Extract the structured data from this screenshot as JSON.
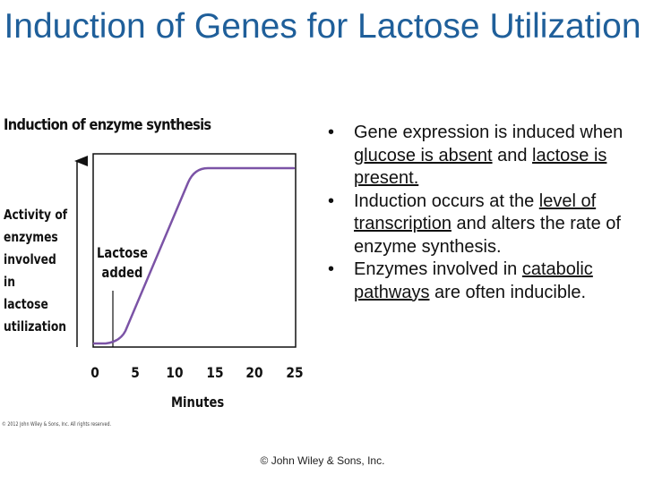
{
  "slide": {
    "title": "Induction of Genes for Lactose Utilization",
    "footer": "© John Wiley & Sons, Inc."
  },
  "figure": {
    "heading": "Induction of enzyme synthesis",
    "y_label": "Activity of\nenzymes\ninvolved in\nlactose\nutilization",
    "annotation": "Lactose\nadded",
    "x_label": "Minutes",
    "x_ticks": [
      "0",
      "5",
      "10",
      "15",
      "20",
      "25"
    ],
    "copyright": "© 2012 John Wiley & Sons, Inc. All rights reserved.",
    "curve_color": "#7b53a6"
  },
  "bullets": [
    {
      "parts": [
        {
          "text": "Gene expression is induced when "
        },
        {
          "text": "glucose is absent",
          "underline": true
        },
        {
          "text": " and "
        },
        {
          "text": "lactose is present.",
          "underline": true
        }
      ]
    },
    {
      "parts": [
        {
          "text": "Induction occurs at the "
        },
        {
          "text": "level of transcription",
          "underline": true
        },
        {
          "text": " and alters the rate of enzyme synthesis."
        }
      ]
    },
    {
      "parts": [
        {
          "text": "Enzymes involved in "
        },
        {
          "text": "catabolic pathways",
          "underline": true
        },
        {
          "text": " are often inducible."
        }
      ]
    }
  ]
}
